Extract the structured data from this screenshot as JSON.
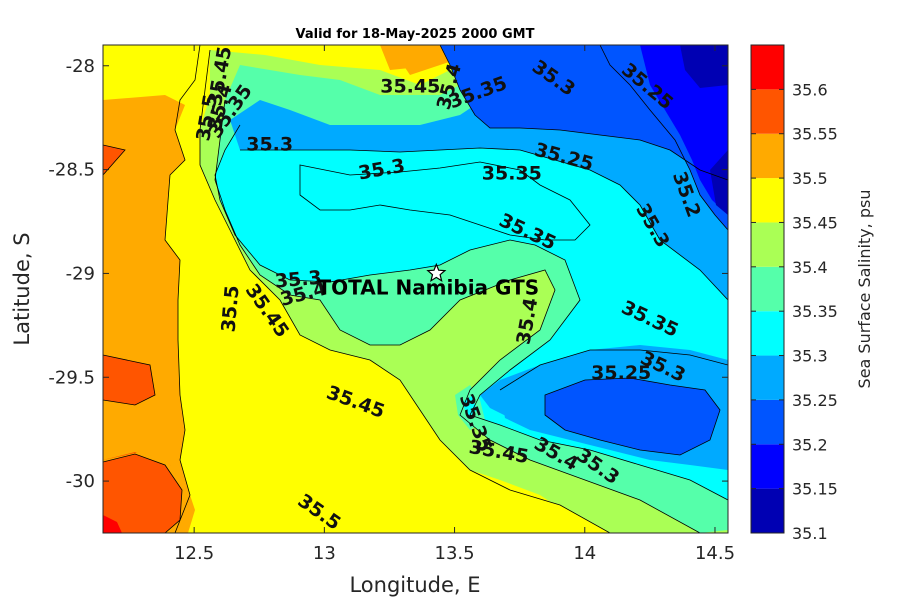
{
  "chart_data": {
    "type": "heatmap",
    "subtype": "filled-contour",
    "title": "Valid for 18-May-2025 2000 GMT",
    "xlabel": "Longitude, E",
    "ylabel": "Latitude, S",
    "colorbar_label": "Sea Surface Salinity, psu",
    "xlim": [
      12.15,
      14.55
    ],
    "ylim": [
      -30.25,
      -27.9
    ],
    "x_ticks": [
      "12.5",
      "13",
      "13.5",
      "14",
      "14.5"
    ],
    "x_tick_values": [
      12.5,
      13,
      13.5,
      14,
      14.5
    ],
    "y_ticks": [
      "-28",
      "-28.5",
      "-29",
      "-29.5",
      "-30"
    ],
    "y_tick_values": [
      -28,
      -28.5,
      -29,
      -29.5,
      -30
    ],
    "levels": [
      35.1,
      35.15,
      35.2,
      35.25,
      35.3,
      35.35,
      35.4,
      35.45,
      35.5,
      35.55,
      35.6,
      35.65
    ],
    "colorbar_ticks": [
      "35.1",
      "35.15",
      "35.2",
      "35.25",
      "35.3",
      "35.35",
      "35.4",
      "35.45",
      "35.5",
      "35.55",
      "35.6"
    ],
    "colors": [
      "#0000b3",
      "#0000ff",
      "#0055ff",
      "#00aaff",
      "#00ffff",
      "#55ffaa",
      "#aaff55",
      "#ffff00",
      "#ffaa00",
      "#ff5500",
      "#ff0000"
    ],
    "station": {
      "name": "TOTAL Namibia GTS",
      "lon": 13.43,
      "lat": -29.0
    },
    "contour_labels": [
      {
        "text": "35.45",
        "lon": 12.6,
        "lat": -28.05,
        "rot": -80
      },
      {
        "text": "35.4",
        "lon": 12.6,
        "lat": -28.2,
        "rot": -75
      },
      {
        "text": "35.35",
        "lon": 12.64,
        "lat": -28.22,
        "rot": -55
      },
      {
        "text": "35.5",
        "lon": 12.55,
        "lat": -28.25,
        "rot": -80
      },
      {
        "text": "35.45",
        "lon": 13.33,
        "lat": -28.1,
        "rot": 0
      },
      {
        "text": "35.4",
        "lon": 13.48,
        "lat": -28.1,
        "rot": -75
      },
      {
        "text": "35.35",
        "lon": 13.59,
        "lat": -28.13,
        "rot": -20
      },
      {
        "text": "35.3",
        "lon": 13.88,
        "lat": -28.06,
        "rot": 35
      },
      {
        "text": "35.25",
        "lon": 14.24,
        "lat": -28.1,
        "rot": 40
      },
      {
        "text": "35.3",
        "lon": 12.79,
        "lat": -28.38,
        "rot": 0
      },
      {
        "text": "35.3",
        "lon": 13.22,
        "lat": -28.5,
        "rot": -10
      },
      {
        "text": "35.25",
        "lon": 13.92,
        "lat": -28.44,
        "rot": 15
      },
      {
        "text": "35.35",
        "lon": 13.72,
        "lat": -28.52,
        "rot": 0
      },
      {
        "text": "35.2",
        "lon": 14.39,
        "lat": -28.62,
        "rot": 70
      },
      {
        "text": "35.3",
        "lon": 14.26,
        "lat": -28.77,
        "rot": 60
      },
      {
        "text": "35.35",
        "lon": 13.78,
        "lat": -28.8,
        "rot": 25
      },
      {
        "text": "35.3",
        "lon": 12.9,
        "lat": -29.03,
        "rot": -5
      },
      {
        "text": "35.4",
        "lon": 12.92,
        "lat": -29.1,
        "rot": -15
      },
      {
        "text": "35.5",
        "lon": 12.64,
        "lat": -29.17,
        "rot": -85
      },
      {
        "text": "35.45",
        "lon": 12.78,
        "lat": -29.18,
        "rot": 55
      },
      {
        "text": "35.4",
        "lon": 13.78,
        "lat": -29.23,
        "rot": -80
      },
      {
        "text": "35.35",
        "lon": 14.25,
        "lat": -29.22,
        "rot": 25
      },
      {
        "text": "35.3",
        "lon": 14.3,
        "lat": -29.45,
        "rot": 25
      },
      {
        "text": "35.25",
        "lon": 14.14,
        "lat": -29.48,
        "rot": 0
      },
      {
        "text": "35.45",
        "lon": 13.12,
        "lat": -29.62,
        "rot": 20
      },
      {
        "text": "35.35",
        "lon": 13.58,
        "lat": -29.72,
        "rot": 70
      },
      {
        "text": "35.45",
        "lon": 13.67,
        "lat": -29.86,
        "rot": 10
      },
      {
        "text": "35.4",
        "lon": 13.89,
        "lat": -29.87,
        "rot": 30
      },
      {
        "text": "35.3",
        "lon": 14.05,
        "lat": -29.93,
        "rot": 35
      },
      {
        "text": "35.5",
        "lon": 12.98,
        "lat": -30.15,
        "rot": 35
      }
    ]
  }
}
